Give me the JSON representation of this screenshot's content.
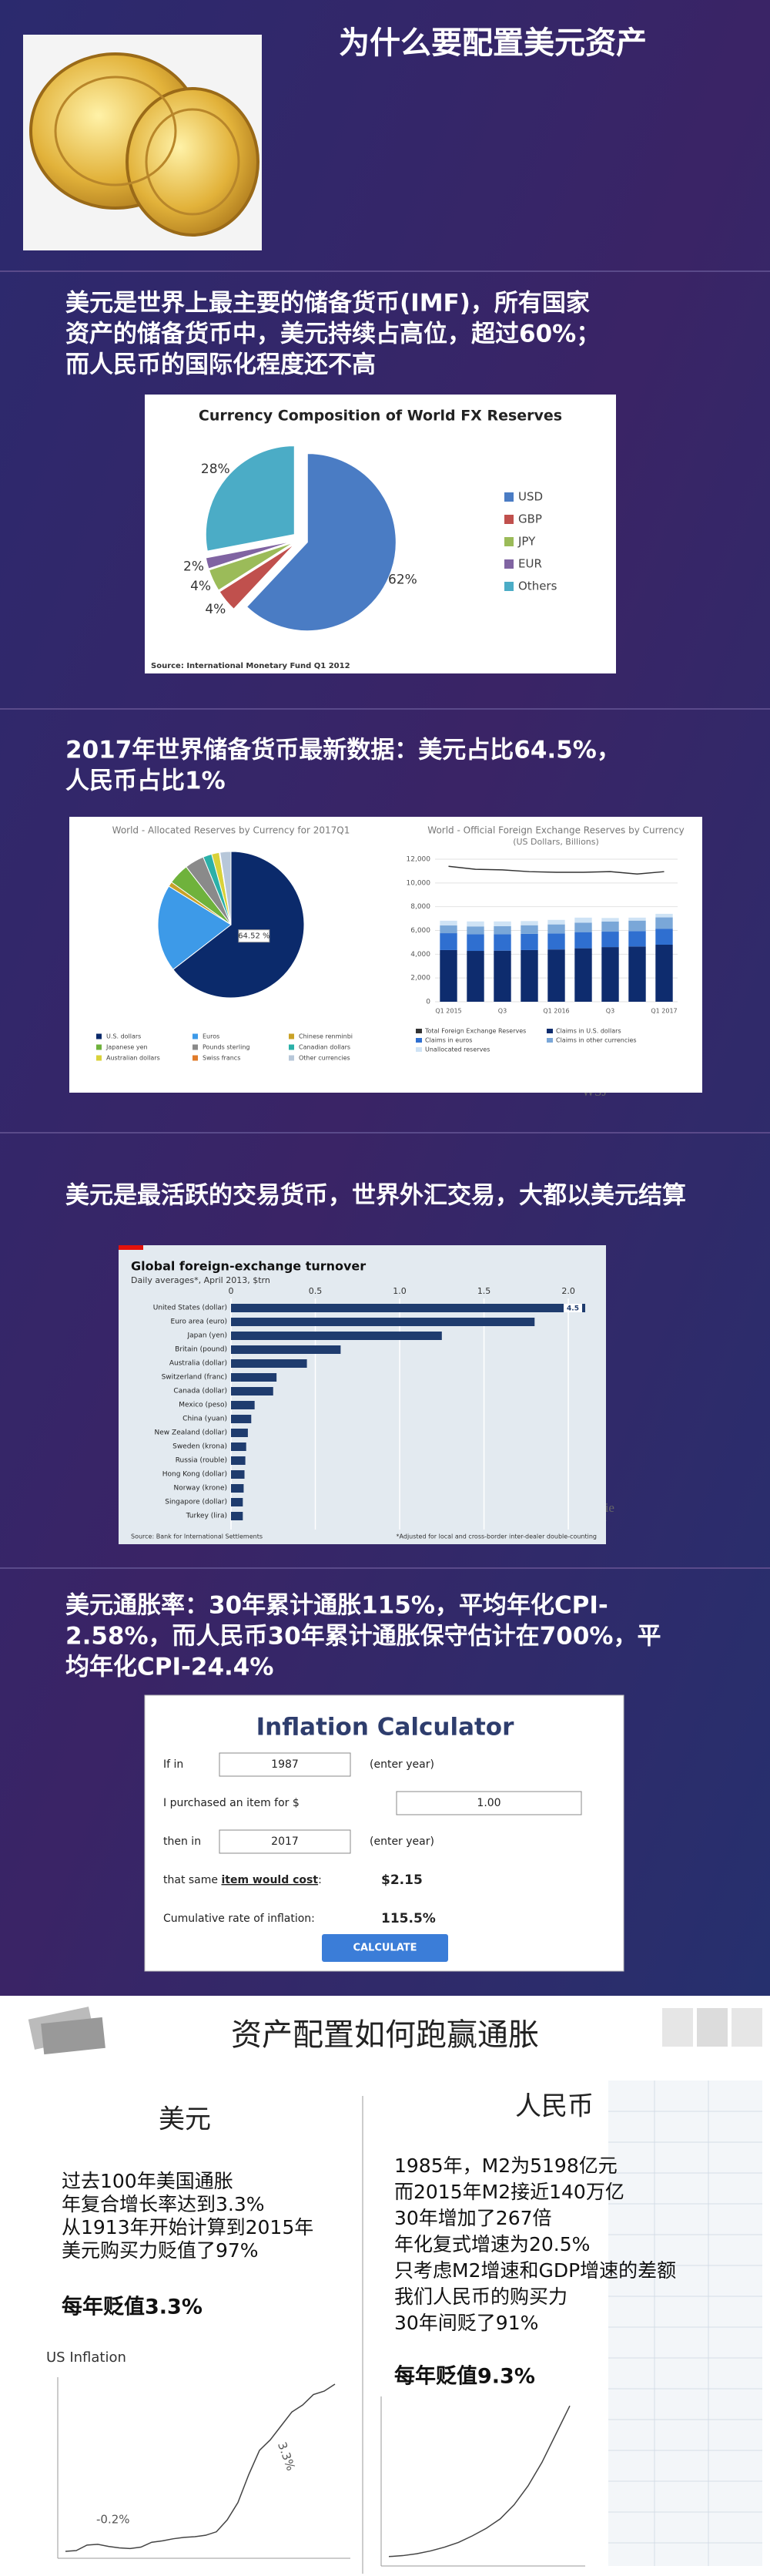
{
  "title": "为什么要配置美元资产",
  "sections": [
    {
      "lines": [
        "美元是世界上最主要的储备货币(IMF)，所有国家",
        "资产的储备货币中，美元持续占高位，超过60%；",
        "而人民币的国际化程度还不高"
      ]
    },
    {
      "lines": [
        "2017年世界储备货币最新数据：美元占比64.5%，",
        "人民币占比1%"
      ]
    },
    {
      "lines": [
        "美元是最活跃的交易货币，世界外汇交易，大都以美元结算"
      ]
    },
    {
      "lines": [
        "美元通胀率：30年累计通胀115%，平均年化CPI-",
        "2.58%，而人民币30年累计通胀保守估计在700%，平",
        "均年化CPI-24.4%"
      ]
    }
  ],
  "watermark": [
    "Maggie",
    "WSJ"
  ],
  "chart_data": [
    {
      "type": "pie",
      "title": "Currency Composition of World FX Reserves",
      "categories": [
        "USD",
        "GBP",
        "JPY",
        "EUR",
        "Others"
      ],
      "values": [
        62,
        4,
        4,
        2,
        28
      ],
      "value_labels": [
        "62%",
        "4%",
        "4%",
        "2%",
        "28%"
      ],
      "colors": [
        "#4a7cc4",
        "#c0504d",
        "#9bbb59",
        "#8064a2",
        "#4bacc6"
      ],
      "legend": "right",
      "source": "Source: International Monetary Fund Q1 2012"
    },
    {
      "type": "pie",
      "title": "World - Allocated Reserves by Currency for 2017Q1",
      "categories": [
        "U.S. dollars",
        "Euros",
        "Chinese renminbi",
        "Japanese yen",
        "Pounds sterling",
        "Canadian dollars",
        "Australian dollars",
        "Swiss francs",
        "Other currencies"
      ],
      "values": [
        64.52,
        19.29,
        1.07,
        4.62,
        4.29,
        1.94,
        1.69,
        0.17,
        2.41
      ],
      "value_labels": [
        "64.52 %",
        null,
        null,
        null,
        null,
        null,
        null,
        null,
        null
      ],
      "colors": [
        "#0b2a6b",
        "#3d9ae8",
        "#c9a227",
        "#6fb23c",
        "#8a8a8a",
        "#2bb0a8",
        "#d9d23a",
        "#e07b2a",
        "#b7c7d9"
      ],
      "legend": "bottom"
    },
    {
      "type": "stacked_bar",
      "title": "World - Official Foreign Exchange Reserves by Currency",
      "subtitle": "(US Dollars, Billions)",
      "categories": [
        "Q1 2015",
        null,
        "Q3",
        null,
        "Q1 2016",
        null,
        "Q3",
        null,
        "Q1 2017"
      ],
      "series": [
        {
          "name": "Claims in U.S. dollars",
          "color": "#0e2c6e",
          "values": [
            4350,
            4280,
            4300,
            4350,
            4400,
            4500,
            4600,
            4650,
            4800
          ]
        },
        {
          "name": "Claims in euros",
          "color": "#2f6fd0",
          "values": [
            1420,
            1400,
            1380,
            1370,
            1350,
            1360,
            1300,
            1300,
            1350
          ]
        },
        {
          "name": "Claims in other currencies",
          "color": "#7aa7d8",
          "values": [
            650,
            660,
            680,
            720,
            760,
            800,
            850,
            880,
            950
          ]
        },
        {
          "name": "Unallocated reserves",
          "color": "#cfe3f5",
          "values": [
            400,
            420,
            400,
            350,
            380,
            420,
            300,
            250,
            300
          ]
        }
      ],
      "line": {
        "name": "Total Foreign Exchange Reserves",
        "color": "#333333",
        "values": [
          11400,
          11150,
          11100,
          10950,
          10900,
          10900,
          10950,
          10750,
          10950
        ]
      },
      "ylim": [
        0,
        12000
      ],
      "yticks": [
        0,
        {
          "value": 2000,
          "label": "2,000"
        },
        {
          "value": 4000,
          "label": "4,000"
        },
        {
          "value": 6000,
          "label": "6,000"
        },
        {
          "value": 8000,
          "label": "8,000"
        },
        {
          "value": 10000,
          "label": "10,000"
        },
        {
          "value": 12000,
          "label": "12,000"
        }
      ],
      "grid": true,
      "legend": "bottom"
    },
    {
      "type": "hbar",
      "title": "Global foreign-exchange turnover",
      "subtitle": "Daily averages*, April 2013, $trn",
      "categories": [
        "United States (dollar)",
        "Euro area (euro)",
        "Japan (yen)",
        "Britain (pound)",
        "Australia (dollar)",
        "Switzerland (franc)",
        "Canada (dollar)",
        "Mexico (peso)",
        "China (yuan)",
        "New Zealand (dollar)",
        "Sweden (krona)",
        "Russia (rouble)",
        "Hong Kong (dollar)",
        "Norway (krone)",
        "Singapore (dollar)",
        "Turkey (lira)"
      ],
      "values": [
        4.5,
        1.8,
        1.25,
        0.65,
        0.45,
        0.27,
        0.25,
        0.14,
        0.12,
        0.1,
        0.09,
        0.085,
        0.08,
        0.075,
        0.07,
        0.07
      ],
      "value_labels": [
        "4.5",
        null,
        null,
        null,
        null,
        null,
        null,
        null,
        null,
        null,
        null,
        null,
        null,
        null,
        null,
        null
      ],
      "color": "#1f3c6e",
      "xlim": [
        0,
        2.1
      ],
      "xticks": [
        0,
        0.5,
        {
          "value": 1,
          "label": "1.0"
        },
        1.5,
        {
          "value": 2,
          "label": "2.0"
        }
      ],
      "grid": true,
      "source": "Source: Bank for International Settlements",
      "note": "*Adjusted for local and cross-border inter-dealer double-counting"
    },
    {
      "type": "line",
      "title": "US Inflation",
      "color": "#444444",
      "ylim": [
        0,
        26
      ],
      "values": [
        1,
        1.1,
        1.9,
        2,
        1.7,
        1.5,
        1.4,
        1.6,
        2.3,
        2.5,
        2.8,
        3,
        3.1,
        3.3,
        3.8,
        5.5,
        8,
        12,
        15.5,
        17,
        19,
        21,
        22,
        23.5,
        24,
        25
      ],
      "annotations": [
        "-0.2%",
        "3.3%"
      ]
    },
    {
      "type": "line",
      "color": "#444444",
      "ylim": [
        0,
        18
      ],
      "values": [
        1,
        1.1,
        1.3,
        1.6,
        2,
        2.5,
        3.2,
        4,
        5,
        6.5,
        8.5,
        11,
        14,
        17
      ]
    }
  ],
  "calculator": {
    "title": "Inflation Calculator",
    "if_in": "If in",
    "year1": "1987",
    "enter_year": "(enter year)",
    "purchased": "I purchased an item for $",
    "amount": "1.00",
    "then_in": "then in",
    "year2": "2017",
    "cost_pre": "that same ",
    "cost_bold": "item would cost",
    "cost_post": ":",
    "cost": "$2.15",
    "cumulative": "Cumulative rate of inflation:",
    "rate": "115.5%",
    "button": "CALCULATE"
  },
  "bottom": {
    "title": "资产配置如何跑赢通胀",
    "left": {
      "heading": "美元",
      "lines": [
        "过去100年美国通胀",
        "年复合增长率达到3.3%",
        "从1913年开始计算到2015年",
        "美元购买力贬值了97%"
      ],
      "summary": "每年贬值3.3%"
    },
    "right": {
      "heading": "人民币",
      "lines": [
        "1985年，M2为5198亿元",
        "而2015年M2接近140万亿",
        "30年增加了267倍",
        "年化复式增速为20.5%",
        "只考虑M2增速和GDP增速的差额",
        "我们人民币的购买力",
        "30年间贬了91%"
      ],
      "summary": "每年贬值9.3%"
    }
  }
}
